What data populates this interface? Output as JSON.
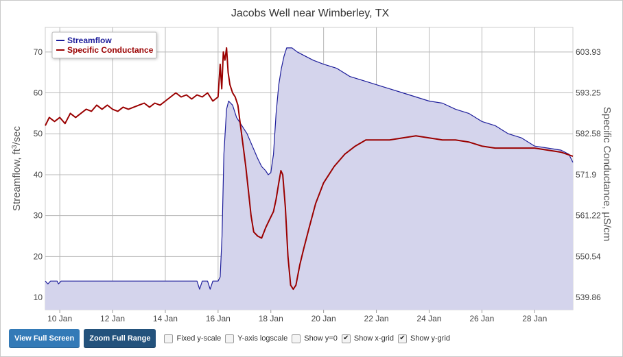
{
  "chart_data": {
    "type": "area",
    "title": "Jacobs Well near Wimberley, TX",
    "xlabel": "",
    "x_ticks": [
      "10 Jan",
      "12 Jan",
      "14 Jan",
      "16 Jan",
      "18 Jan",
      "20 Jan",
      "22 Jan",
      "24 Jan",
      "26 Jan",
      "28 Jan"
    ],
    "x_tick_days": [
      10,
      12,
      14,
      16,
      18,
      20,
      22,
      24,
      26,
      28
    ],
    "xlim": [
      9.45,
      29.45
    ],
    "y_left": {
      "ticks": [
        "10",
        "20",
        "30",
        "40",
        "50",
        "60",
        "70"
      ],
      "tick_values": [
        10,
        20,
        30,
        40,
        50,
        60,
        70
      ],
      "lim": [
        7,
        76
      ]
    },
    "y_right": {
      "ticks": [
        "539.86",
        "550.54",
        "561.22",
        "571.9",
        "582.58",
        "593.25",
        "603.93"
      ],
      "tick_values": [
        539.86,
        550.54,
        561.22,
        571.9,
        582.58,
        593.25,
        603.93
      ]
    },
    "legend_position": "top-left",
    "grid": {
      "x": true,
      "y": true
    },
    "series": [
      {
        "name": "Streamflow",
        "axis": "left",
        "color": "#1c1c9a",
        "fill": "#d4d4ec",
        "points": [
          [
            9.45,
            14
          ],
          [
            9.55,
            13.3
          ],
          [
            9.65,
            14
          ],
          [
            9.9,
            14
          ],
          [
            9.95,
            13.3
          ],
          [
            10.05,
            14
          ],
          [
            15.2,
            14
          ],
          [
            15.3,
            12
          ],
          [
            15.4,
            14
          ],
          [
            15.6,
            14
          ],
          [
            15.7,
            12
          ],
          [
            15.8,
            14
          ],
          [
            16.0,
            14
          ],
          [
            16.08,
            15
          ],
          [
            16.15,
            25
          ],
          [
            16.22,
            45
          ],
          [
            16.32,
            56
          ],
          [
            16.4,
            58
          ],
          [
            16.55,
            57
          ],
          [
            16.7,
            54
          ],
          [
            16.9,
            52
          ],
          [
            17.1,
            50
          ],
          [
            17.3,
            47
          ],
          [
            17.5,
            44
          ],
          [
            17.65,
            42
          ],
          [
            17.8,
            41
          ],
          [
            17.9,
            40
          ],
          [
            18.0,
            40.5
          ],
          [
            18.1,
            45
          ],
          [
            18.2,
            55
          ],
          [
            18.3,
            62
          ],
          [
            18.4,
            66
          ],
          [
            18.5,
            69
          ],
          [
            18.6,
            71
          ],
          [
            18.8,
            71
          ],
          [
            19.0,
            70
          ],
          [
            19.3,
            69
          ],
          [
            19.6,
            68
          ],
          [
            20.0,
            67
          ],
          [
            20.5,
            66
          ],
          [
            21.0,
            64
          ],
          [
            21.5,
            63
          ],
          [
            22.0,
            62
          ],
          [
            22.5,
            61
          ],
          [
            23.0,
            60
          ],
          [
            23.5,
            59
          ],
          [
            24.0,
            58
          ],
          [
            24.5,
            57.5
          ],
          [
            25.0,
            56
          ],
          [
            25.5,
            55
          ],
          [
            26.0,
            53
          ],
          [
            26.5,
            52
          ],
          [
            27.0,
            50
          ],
          [
            27.5,
            49
          ],
          [
            28.0,
            47
          ],
          [
            28.5,
            46.5
          ],
          [
            29.0,
            46
          ],
          [
            29.3,
            45
          ],
          [
            29.45,
            43
          ]
        ]
      },
      {
        "name": "Specific Conductance",
        "axis": "left",
        "color": "#9a0000",
        "points": [
          [
            9.45,
            52
          ],
          [
            9.6,
            54
          ],
          [
            9.8,
            53
          ],
          [
            10.0,
            54
          ],
          [
            10.2,
            52.5
          ],
          [
            10.4,
            55
          ],
          [
            10.6,
            54
          ],
          [
            10.8,
            55
          ],
          [
            11.0,
            56
          ],
          [
            11.2,
            55.5
          ],
          [
            11.4,
            57
          ],
          [
            11.6,
            56
          ],
          [
            11.8,
            57
          ],
          [
            12.0,
            56
          ],
          [
            12.2,
            55.5
          ],
          [
            12.4,
            56.5
          ],
          [
            12.6,
            56
          ],
          [
            12.8,
            56.5
          ],
          [
            13.0,
            57
          ],
          [
            13.2,
            57.5
          ],
          [
            13.4,
            56.5
          ],
          [
            13.6,
            57.5
          ],
          [
            13.8,
            57
          ],
          [
            14.0,
            58
          ],
          [
            14.2,
            59
          ],
          [
            14.4,
            60
          ],
          [
            14.6,
            59
          ],
          [
            14.8,
            59.5
          ],
          [
            15.0,
            58.5
          ],
          [
            15.2,
            59.5
          ],
          [
            15.4,
            59
          ],
          [
            15.6,
            60
          ],
          [
            15.8,
            58
          ],
          [
            16.0,
            59
          ],
          [
            16.08,
            67
          ],
          [
            16.14,
            61
          ],
          [
            16.2,
            70
          ],
          [
            16.26,
            68
          ],
          [
            16.32,
            71
          ],
          [
            16.38,
            65
          ],
          [
            16.45,
            62
          ],
          [
            16.55,
            60
          ],
          [
            16.65,
            59
          ],
          [
            16.75,
            57
          ],
          [
            16.85,
            52
          ],
          [
            16.95,
            47
          ],
          [
            17.05,
            42
          ],
          [
            17.15,
            36
          ],
          [
            17.25,
            30
          ],
          [
            17.35,
            26
          ],
          [
            17.5,
            25
          ],
          [
            17.65,
            24.5
          ],
          [
            17.8,
            27
          ],
          [
            17.95,
            29
          ],
          [
            18.1,
            31
          ],
          [
            18.2,
            34
          ],
          [
            18.3,
            38
          ],
          [
            18.38,
            41
          ],
          [
            18.45,
            40
          ],
          [
            18.55,
            32
          ],
          [
            18.65,
            20
          ],
          [
            18.75,
            13
          ],
          [
            18.85,
            12
          ],
          [
            18.95,
            13
          ],
          [
            19.1,
            18
          ],
          [
            19.25,
            22
          ],
          [
            19.45,
            27
          ],
          [
            19.7,
            33
          ],
          [
            20.0,
            38
          ],
          [
            20.4,
            42
          ],
          [
            20.8,
            45
          ],
          [
            21.2,
            47
          ],
          [
            21.6,
            48.5
          ],
          [
            22.0,
            48.5
          ],
          [
            22.5,
            48.5
          ],
          [
            23.0,
            49
          ],
          [
            23.5,
            49.5
          ],
          [
            24.0,
            49
          ],
          [
            24.5,
            48.5
          ],
          [
            25.0,
            48.5
          ],
          [
            25.5,
            48
          ],
          [
            26.0,
            47
          ],
          [
            26.5,
            46.5
          ],
          [
            27.0,
            46.5
          ],
          [
            27.5,
            46.5
          ],
          [
            28.0,
            46.5
          ],
          [
            28.5,
            46
          ],
          [
            29.0,
            45.5
          ],
          [
            29.45,
            44.5
          ]
        ]
      }
    ]
  },
  "controls": {
    "view_full_screen": "View Full Screen",
    "zoom_full_range": "Zoom Full Range",
    "checkboxes": [
      {
        "label": "Fixed y-scale",
        "checked": false
      },
      {
        "label": "Y-axis logscale",
        "checked": false
      },
      {
        "label": "Show y=0",
        "checked": false
      },
      {
        "label": "Show x-grid",
        "checked": true
      },
      {
        "label": "Show y-grid",
        "checked": true
      }
    ]
  }
}
